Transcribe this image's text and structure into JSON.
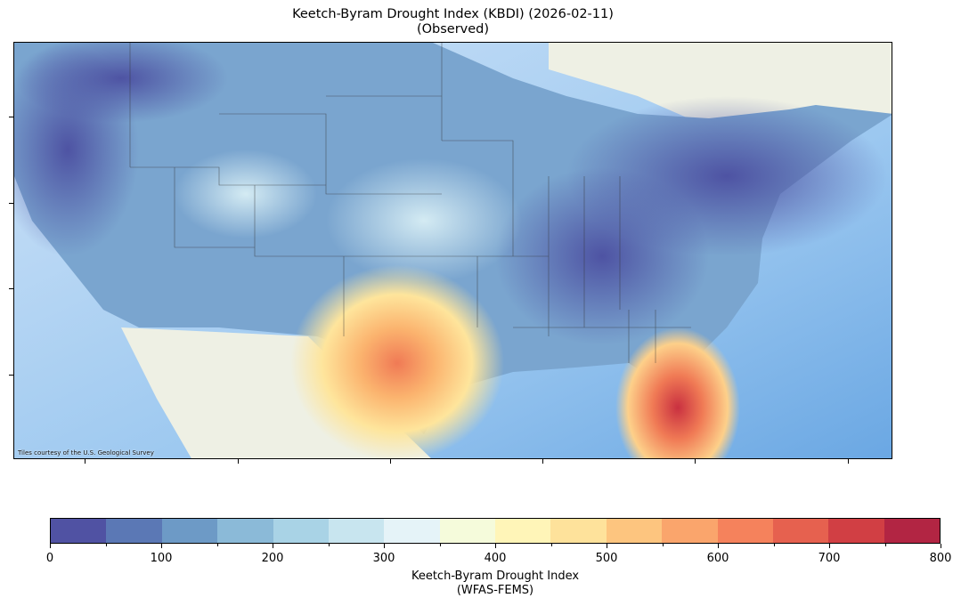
{
  "title": {
    "line1": "Keetch-Byram Drought Index (KBDI) (2026-02-11)",
    "line2": "(Observed)"
  },
  "map": {
    "attribution": "Tiles courtesy of the U.S. Geological Survey",
    "basemap_colors": {
      "ocean": "#8fc0ee",
      "land_foreign": "#eef0e4"
    }
  },
  "colorbar": {
    "label_line1": "Keetch-Byram Drought Index",
    "label_line2": "(WFAS-FEMS)",
    "range": [
      0,
      800
    ],
    "step": 50,
    "ticks": [
      "0",
      "100",
      "200",
      "300",
      "400",
      "500",
      "600",
      "700",
      "800"
    ],
    "colors": [
      "#5052a3",
      "#5b78b5",
      "#6d9ac6",
      "#8bbad8",
      "#a9d3e6",
      "#c8e5ef",
      "#e5f3f8",
      "#f5fbdb",
      "#fff5b8",
      "#fee29b",
      "#fdc57f",
      "#faa56c",
      "#f5825c",
      "#e6614f",
      "#d13f44",
      "#b22543"
    ]
  }
}
